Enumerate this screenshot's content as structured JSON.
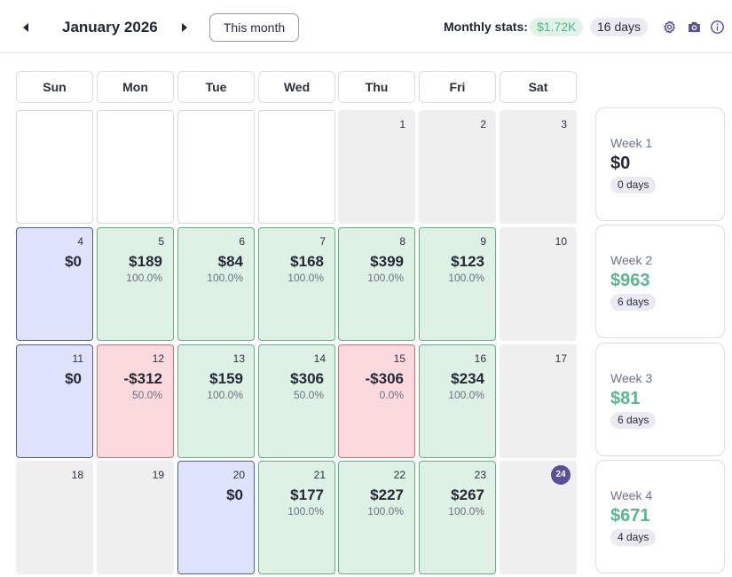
{
  "header": {
    "month_title": "January 2026",
    "this_month_label": "This month",
    "stats_label": "Monthly stats:",
    "stats_amount": "$1.72K",
    "stats_days": "16 days"
  },
  "icons": {
    "prev": "caret-left-icon",
    "next": "caret-right-icon",
    "settings": "gear-icon",
    "screenshot": "camera-icon",
    "info": "info-circle-icon"
  },
  "colors": {
    "accent": "#5a4f9e",
    "profit_bg": "#ddf1e4",
    "profit_border": "#5db482",
    "loss_bg": "#fbdadd",
    "loss_border": "#e06b75",
    "zero_bg": "#dfe3fb",
    "zero_border": "#4a5bc4",
    "positive_text": "#56b98d"
  },
  "weekdays": [
    "Sun",
    "Mon",
    "Tue",
    "Wed",
    "Thu",
    "Fri",
    "Sat"
  ],
  "weeks": [
    {
      "label": "Week 1",
      "amount": "$0",
      "days": "0 days",
      "positive": false,
      "cells": [
        {
          "day": "",
          "status": "blank",
          "amount": "",
          "pct": ""
        },
        {
          "day": "",
          "status": "blank",
          "amount": "",
          "pct": ""
        },
        {
          "day": "",
          "status": "blank",
          "amount": "",
          "pct": ""
        },
        {
          "day": "",
          "status": "blank",
          "amount": "",
          "pct": ""
        },
        {
          "day": "1",
          "status": "muted",
          "amount": "",
          "pct": ""
        },
        {
          "day": "2",
          "status": "muted",
          "amount": "",
          "pct": ""
        },
        {
          "day": "3",
          "status": "muted",
          "amount": "",
          "pct": ""
        }
      ]
    },
    {
      "label": "Week 2",
      "amount": "$963",
      "days": "6 days",
      "positive": true,
      "cells": [
        {
          "day": "4",
          "status": "zero",
          "amount": "$0",
          "pct": ""
        },
        {
          "day": "5",
          "status": "profit",
          "amount": "$189",
          "pct": "100.0%"
        },
        {
          "day": "6",
          "status": "profit",
          "amount": "$84",
          "pct": "100.0%"
        },
        {
          "day": "7",
          "status": "profit",
          "amount": "$168",
          "pct": "100.0%"
        },
        {
          "day": "8",
          "status": "profit",
          "amount": "$399",
          "pct": "100.0%"
        },
        {
          "day": "9",
          "status": "profit",
          "amount": "$123",
          "pct": "100.0%"
        },
        {
          "day": "10",
          "status": "muted",
          "amount": "",
          "pct": ""
        }
      ]
    },
    {
      "label": "Week 3",
      "amount": "$81",
      "days": "6 days",
      "positive": true,
      "cells": [
        {
          "day": "11",
          "status": "zero",
          "amount": "$0",
          "pct": ""
        },
        {
          "day": "12",
          "status": "loss",
          "amount": "-$312",
          "pct": "50.0%"
        },
        {
          "day": "13",
          "status": "profit",
          "amount": "$159",
          "pct": "100.0%"
        },
        {
          "day": "14",
          "status": "profit",
          "amount": "$306",
          "pct": "50.0%"
        },
        {
          "day": "15",
          "status": "loss",
          "amount": "-$306",
          "pct": "0.0%"
        },
        {
          "day": "16",
          "status": "profit",
          "amount": "$234",
          "pct": "100.0%"
        },
        {
          "day": "17",
          "status": "muted",
          "amount": "",
          "pct": ""
        }
      ]
    },
    {
      "label": "Week 4",
      "amount": "$671",
      "days": "4 days",
      "positive": true,
      "cells": [
        {
          "day": "18",
          "status": "muted",
          "amount": "",
          "pct": ""
        },
        {
          "day": "19",
          "status": "muted",
          "amount": "",
          "pct": ""
        },
        {
          "day": "20",
          "status": "zero",
          "amount": "$0",
          "pct": ""
        },
        {
          "day": "21",
          "status": "profit",
          "amount": "$177",
          "pct": "100.0%"
        },
        {
          "day": "22",
          "status": "profit",
          "amount": "$227",
          "pct": "100.0%"
        },
        {
          "day": "23",
          "status": "profit",
          "amount": "$267",
          "pct": "100.0%"
        },
        {
          "day": "24",
          "status": "muted",
          "amount": "",
          "pct": "",
          "today": true
        }
      ]
    }
  ]
}
